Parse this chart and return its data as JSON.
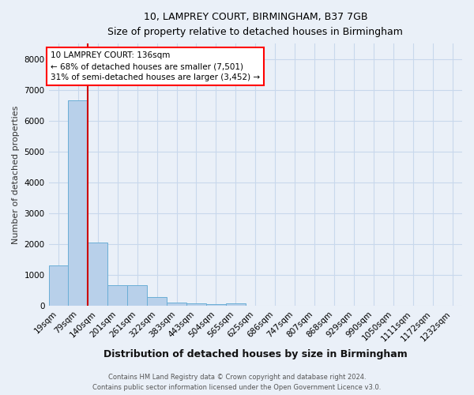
{
  "title1": "10, LAMPREY COURT, BIRMINGHAM, B37 7GB",
  "title2": "Size of property relative to detached houses in Birmingham",
  "xlabel": "Distribution of detached houses by size in Birmingham",
  "ylabel": "Number of detached properties",
  "footnote1": "Contains HM Land Registry data © Crown copyright and database right 2024.",
  "footnote2": "Contains public sector information licensed under the Open Government Licence v3.0.",
  "bin_labels": [
    "19sqm",
    "79sqm",
    "140sqm",
    "201sqm",
    "261sqm",
    "322sqm",
    "383sqm",
    "443sqm",
    "504sqm",
    "565sqm",
    "625sqm",
    "686sqm",
    "747sqm",
    "807sqm",
    "868sqm",
    "929sqm",
    "990sqm",
    "1050sqm",
    "1111sqm",
    "1172sqm",
    "1232sqm"
  ],
  "bar_heights": [
    1300,
    6650,
    2060,
    670,
    660,
    290,
    120,
    90,
    50,
    75,
    0,
    0,
    0,
    0,
    0,
    0,
    0,
    0,
    0,
    0,
    0
  ],
  "bar_color": "#b8d0ea",
  "bar_edge_color": "#6aaed6",
  "vline_color": "#cc0000",
  "property_line_label": "10 LAMPREY COURT: 136sqm",
  "annotation_line1": "← 68% of detached houses are smaller (7,501)",
  "annotation_line2": "31% of semi-detached houses are larger (3,452) →",
  "annotation_box_facecolor": "white",
  "annotation_box_edgecolor": "red",
  "ylim": [
    0,
    8500
  ],
  "yticks": [
    0,
    1000,
    2000,
    3000,
    4000,
    5000,
    6000,
    7000,
    8000
  ],
  "grid_color": "#c8d8ec",
  "background_color": "#eaf0f8",
  "plot_bg_color": "#eaf0f8"
}
